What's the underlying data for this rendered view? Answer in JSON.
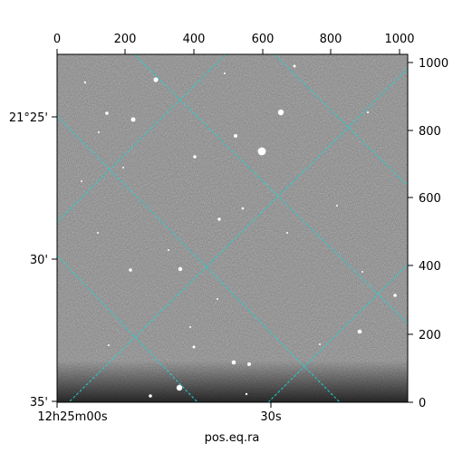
{
  "figure": {
    "xlabel": "pos.eq.ra",
    "pixel_axis": {
      "top_ticks": [
        "0",
        "200",
        "400",
        "600",
        "800",
        "1000"
      ],
      "right_ticks": [
        "0",
        "200",
        "400",
        "600",
        "800",
        "1000"
      ],
      "range": [
        0,
        1000
      ]
    },
    "world_axis": {
      "dec_ticks": [
        "21°25'",
        "30'",
        "35'"
      ],
      "ra_ticks": [
        "12h25m00s",
        "30s"
      ]
    },
    "colors": {
      "grid": "#1fd1d1",
      "frame": "#000000",
      "sky_mid": "#8a8a8a"
    }
  }
}
